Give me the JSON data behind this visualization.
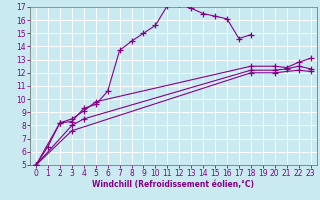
{
  "xlabel": "Windchill (Refroidissement éolien,°C)",
  "xlim": [
    -0.5,
    23.5
  ],
  "ylim": [
    5,
    17
  ],
  "xticks": [
    0,
    1,
    2,
    3,
    4,
    5,
    6,
    7,
    8,
    9,
    10,
    11,
    12,
    13,
    14,
    15,
    16,
    17,
    18,
    19,
    20,
    21,
    22,
    23
  ],
  "yticks": [
    5,
    6,
    7,
    8,
    9,
    10,
    11,
    12,
    13,
    14,
    15,
    16,
    17
  ],
  "bg_color": "#c8eaf0",
  "grid_color": "#b0d8e0",
  "line_color": "#880088",
  "series": {
    "upper": {
      "x": [
        0,
        1,
        2,
        3,
        4,
        5,
        6,
        7,
        8,
        9,
        10,
        11,
        12,
        13,
        14,
        15,
        16,
        17,
        18
      ],
      "y": [
        5.0,
        6.4,
        8.2,
        8.3,
        9.3,
        9.6,
        10.6,
        13.7,
        14.4,
        15.0,
        15.6,
        17.1,
        17.2,
        16.9,
        16.5,
        16.3,
        16.1,
        14.6,
        14.9
      ]
    },
    "mid1": {
      "x": [
        0,
        2,
        3,
        4,
        5,
        18,
        20,
        21,
        22,
        23
      ],
      "y": [
        5.0,
        8.2,
        8.5,
        9.1,
        9.8,
        12.5,
        12.5,
        12.4,
        12.8,
        13.1
      ]
    },
    "mid2": {
      "x": [
        0,
        3,
        4,
        18,
        20,
        21,
        22,
        23
      ],
      "y": [
        5.0,
        8.0,
        8.5,
        12.2,
        12.2,
        12.3,
        12.5,
        12.3
      ]
    },
    "low": {
      "x": [
        0,
        3,
        18,
        20,
        22,
        23
      ],
      "y": [
        5.0,
        7.6,
        12.0,
        12.0,
        12.2,
        12.1
      ]
    }
  },
  "tick_fontsize": 5.5,
  "xlabel_fontsize": 5.5
}
